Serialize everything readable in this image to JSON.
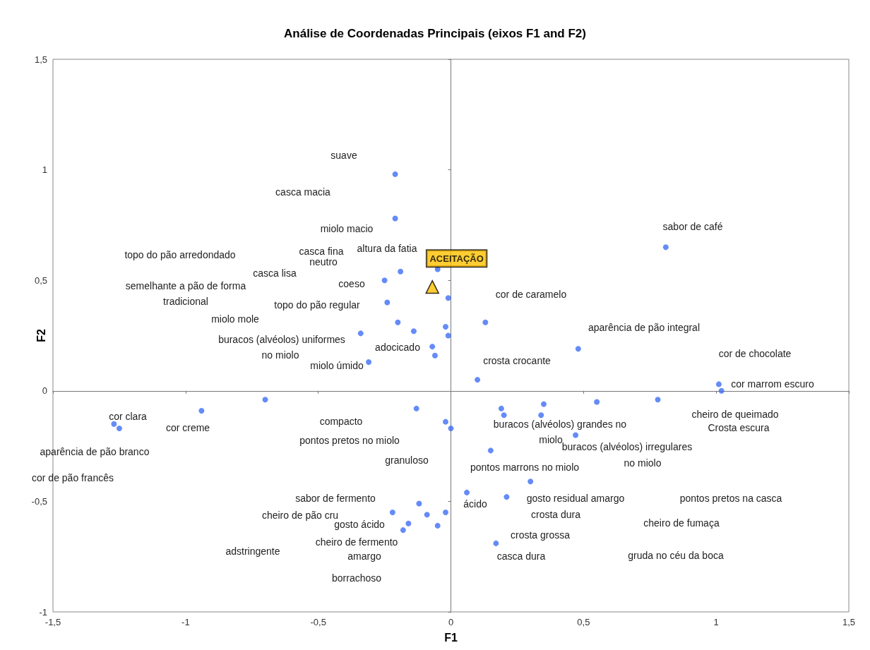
{
  "chart_data": {
    "type": "scatter",
    "title": "Análise de Coordenadas Principais (eixos F1 and F2)",
    "xlabel": "F1",
    "ylabel": "F2",
    "xlim": [
      -1.5,
      1.5
    ],
    "ylim": [
      -1,
      1.5
    ],
    "xticks": [
      {
        "value": -1.5,
        "label": "-1,5"
      },
      -1,
      {
        "value": -0.5,
        "label": "-0,5"
      },
      0,
      {
        "value": 0.5,
        "label": "0,5"
      },
      1,
      {
        "value": 1.5,
        "label": "1,5"
      }
    ],
    "yticks": [
      -1,
      {
        "value": -0.5,
        "label": "-0,5"
      },
      0,
      {
        "value": 0.5,
        "label": "0,5"
      },
      1,
      {
        "value": 1.5,
        "label": "1,5"
      }
    ],
    "series": [
      {
        "color": "#3d6ef5",
        "marker": "circle",
        "x": [
          -0.21,
          -0.21,
          -0.19,
          -0.05,
          -0.25,
          -0.24,
          -0.01,
          -0.2,
          0.13,
          -0.14,
          -0.02,
          -0.01,
          -0.34,
          -0.07,
          -0.06,
          -0.31,
          0.48,
          0.81,
          0.1,
          1.01,
          1.02,
          -0.7,
          -0.94,
          -1.27,
          -1.25,
          -0.13,
          -0.02,
          0.0,
          0.19,
          0.2,
          0.35,
          0.34,
          0.55,
          0.78,
          0.47,
          0.15,
          0.3,
          0.06,
          0.21,
          -0.12,
          -0.22,
          -0.09,
          -0.02,
          -0.16,
          -0.18,
          -0.05,
          0.17
        ],
        "values": [
          0.98,
          0.78,
          0.54,
          0.55,
          0.5,
          0.4,
          0.42,
          0.31,
          0.31,
          0.27,
          0.29,
          0.25,
          0.26,
          0.2,
          0.16,
          0.13,
          0.19,
          0.65,
          0.05,
          0.03,
          0.0,
          -0.04,
          -0.09,
          -0.15,
          -0.17,
          -0.08,
          -0.14,
          -0.17,
          -0.08,
          -0.11,
          -0.06,
          -0.11,
          -0.05,
          -0.04,
          -0.2,
          -0.27,
          -0.41,
          -0.46,
          -0.48,
          -0.51,
          -0.55,
          -0.56,
          -0.55,
          -0.6,
          -0.63,
          -0.61,
          -0.69
        ]
      },
      {
        "name": "ACEITAÇÃO",
        "color": "#ffc000",
        "marker": "triangle",
        "x": [
          -0.07
        ],
        "values": [
          0.47
        ]
      }
    ],
    "annotations": [
      "suave",
      "casca macia",
      "miolo macio",
      "topo do pão arredondado",
      "casca fina",
      "altura da fatia",
      "neutro",
      "casca lisa",
      "semelhante a pão de forma",
      "coeso",
      "tradicional",
      "topo do pão regular",
      "miolo mole",
      "buracos (alvéolos) uniformes",
      "no miolo",
      "adocicado",
      "miolo úmido",
      "cor de caramelo",
      "aparência de pão integral",
      "crosta crocante",
      "sabor de café",
      "cor de chocolate",
      "cor marrom escuro",
      "cheiro de queimado",
      "Crosta escura",
      "cor clara",
      "cor creme",
      "aparência de pão branco",
      "cor de pão francês",
      "compacto",
      "pontos pretos no miolo",
      "granuloso",
      "buracos (alvéolos) grandes no",
      "miolo",
      "buracos (alvéolos) irregulares",
      "no miolo",
      "pontos marrons no miolo",
      "sabor de fermento",
      "ácido",
      "gosto residual amargo",
      "pontos pretos na casca",
      "cheiro de pão cru",
      "gosto ácido",
      "crosta dura",
      "cheiro de fumaça",
      "crosta grossa",
      "cheiro de fermento",
      "adstringente",
      "amargo",
      "casca dura",
      "gruda no céu da boca",
      "borrachoso"
    ]
  }
}
